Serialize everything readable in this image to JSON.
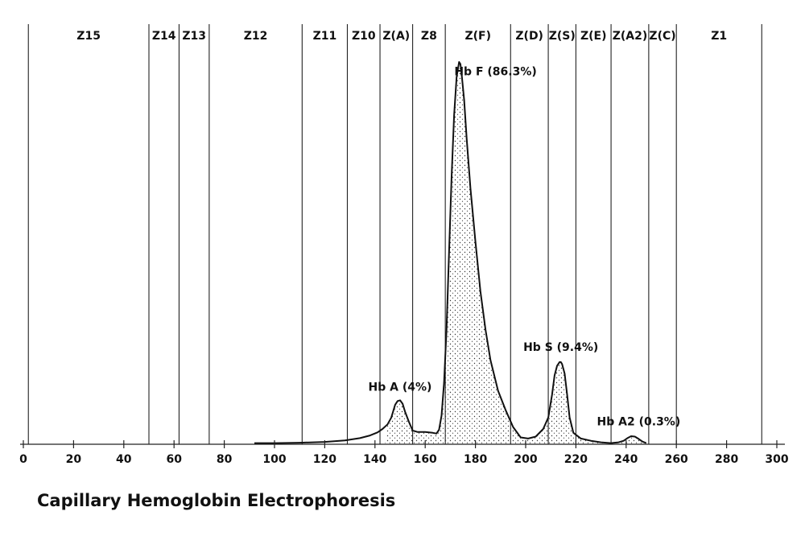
{
  "chart_data": {
    "type": "line",
    "title": "Capillary Hemoglobin Electrophoresis",
    "xlim": [
      0,
      300
    ],
    "x_ticks": [
      {
        "value": 0,
        "label": "0"
      },
      {
        "value": 20,
        "label": "20"
      },
      {
        "value": 40,
        "label": "40"
      },
      {
        "value": 60,
        "label": "60"
      },
      {
        "value": 80,
        "label": "80"
      },
      {
        "value": 100,
        "label": "100"
      },
      {
        "value": 120,
        "label": "120"
      },
      {
        "value": 140,
        "label": "140"
      },
      {
        "value": 160,
        "label": "160"
      },
      {
        "value": 180,
        "label": "180"
      },
      {
        "value": 200,
        "label": "200"
      },
      {
        "value": 220,
        "label": "220"
      },
      {
        "value": 240,
        "label": "240"
      },
      {
        "value": 260,
        "label": "260"
      },
      {
        "value": 280,
        "label": "280"
      },
      {
        "value": 300,
        "label": "300"
      }
    ],
    "zone_boundaries": [
      2,
      50,
      62,
      74,
      111,
      129,
      142,
      155,
      168,
      194,
      209,
      220,
      234,
      249,
      260,
      294
    ],
    "zones": [
      {
        "label": "Z15",
        "from": 2,
        "to": 50
      },
      {
        "label": "Z14",
        "from": 50,
        "to": 62
      },
      {
        "label": "Z13",
        "from": 62,
        "to": 74
      },
      {
        "label": "Z12",
        "from": 74,
        "to": 111
      },
      {
        "label": "Z11",
        "from": 111,
        "to": 129
      },
      {
        "label": "Z10",
        "from": 129,
        "to": 142
      },
      {
        "label": "Z(A)",
        "from": 142,
        "to": 155
      },
      {
        "label": "Z8",
        "from": 155,
        "to": 168
      },
      {
        "label": "Z(F)",
        "from": 168,
        "to": 194
      },
      {
        "label": "Z(D)",
        "from": 194,
        "to": 209
      },
      {
        "label": "Z(S)",
        "from": 209,
        "to": 220
      },
      {
        "label": "Z(E)",
        "from": 220,
        "to": 234
      },
      {
        "label": "Z(A2)",
        "from": 234,
        "to": 249
      },
      {
        "label": "Z(C)",
        "from": 249,
        "to": 260
      },
      {
        "label": "Z1",
        "from": 260,
        "to": 294
      }
    ],
    "peaks": [
      {
        "label": "Hb A (4%)",
        "x": 150.5,
        "label_x": 150
      },
      {
        "label": "Hb F (86.3%)",
        "x": 174,
        "label_x": 188
      },
      {
        "label": "Hb S (9.4%)",
        "x": 214,
        "label_x": 214
      },
      {
        "label": "Hb A2 (0.3%)",
        "x": 243.5,
        "label_x": 245
      }
    ],
    "series": [
      {
        "x": [
          92,
          100,
          110,
          120,
          128,
          134,
          138,
          141,
          143,
          145,
          146.5,
          148,
          149,
          150,
          151,
          152,
          153.5,
          155,
          157,
          160,
          163,
          164.5,
          165.5,
          166.5,
          167.5,
          168.5,
          169.5,
          170.5,
          171.5,
          172.5,
          173.5,
          174,
          174.5,
          175.5,
          176.5,
          178,
          180,
          182,
          184,
          186,
          189,
          192,
          195,
          198,
          201,
          204,
          207,
          209,
          210.5,
          211.5,
          212.5,
          213.5,
          214,
          214.5,
          215.5,
          216.5,
          217.5,
          219,
          222,
          226,
          230,
          234,
          237,
          239,
          240.5,
          242,
          243.5,
          245,
          246.5,
          248
        ],
        "y": [
          0.3,
          0.3,
          0.4,
          0.6,
          1.0,
          1.6,
          2.3,
          3.1,
          4.0,
          5.2,
          7.0,
          10.3,
          11.3,
          11.5,
          10.6,
          8.5,
          5.9,
          3.6,
          3.2,
          3.2,
          3.0,
          2.8,
          3.8,
          7.5,
          16.0,
          30.0,
          50.0,
          70.0,
          86.0,
          96.0,
          100.0,
          99.5,
          97.0,
          90.0,
          80.0,
          67.0,
          53.0,
          40.0,
          30.0,
          22.0,
          14.0,
          9.0,
          4.5,
          1.8,
          1.5,
          2.0,
          4.0,
          7.0,
          13.0,
          18.0,
          20.5,
          21.5,
          21.5,
          21.0,
          18.5,
          13.0,
          7.0,
          3.0,
          1.5,
          0.9,
          0.5,
          0.3,
          0.5,
          0.9,
          1.6,
          2.1,
          2.0,
          1.4,
          0.7,
          0.3
        ]
      }
    ]
  }
}
